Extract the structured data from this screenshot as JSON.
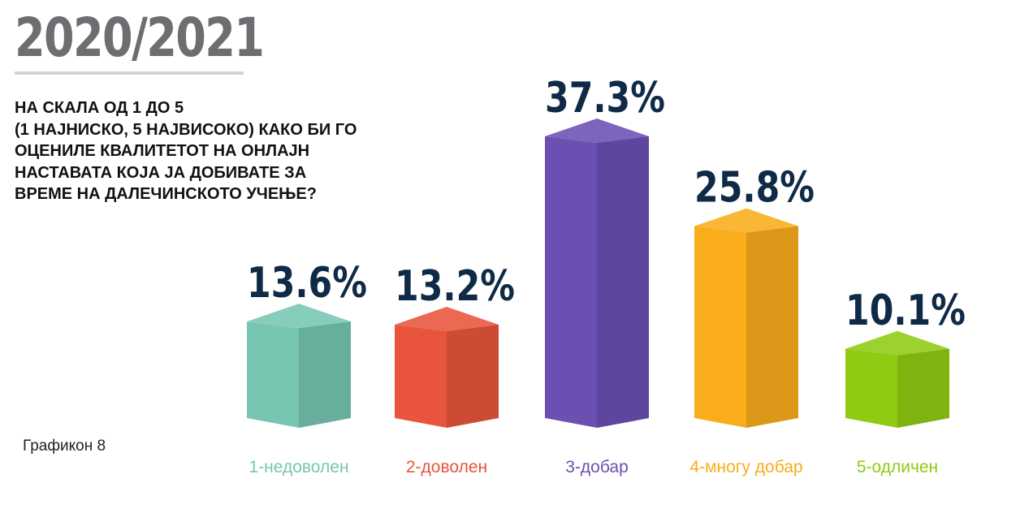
{
  "header": {
    "year": "2020/2021",
    "question": "НА СКАЛА ОД 1 ДО 5\n(1 НАЈНИСКО, 5 НАЈВИСОКО) КАКО БИ ГО\nОЦЕНИЛЕ КВАЛИТЕТОТ НА ОНЛАЈН\nНАСТАВАТА КОЈА ЈА ДОБИВАТЕ ЗА\nВРЕМЕ НА ДАЛЕЧИНСКОТО УЧЕЊЕ?"
  },
  "caption": "Графикон 8",
  "chart_data": {
    "type": "bar",
    "title": "НА СКАЛА ОД 1 ДО 5 (1 НАЈНИСКО, 5 НАЈВИСОКО) КАКО БИ ГО ОЦЕНИЛЕ КВАЛИТЕТОТ НА ОНЛАЈН НАСТАВАТА КОЈА ЈА ДОБИВАТЕ ЗА ВРЕМЕ НА ДАЛЕЧИНСКОТО УЧЕЊЕ?",
    "categories": [
      "1-недоволен",
      "2-доволен",
      "3-добар",
      "4-многу добар",
      "5-одличен"
    ],
    "values": [
      13.6,
      13.2,
      37.3,
      25.8,
      10.1
    ],
    "value_labels": [
      "13.6%",
      "13.2%",
      "37.3%",
      "25.8%",
      "10.1%"
    ],
    "colors": [
      "#76c6b2",
      "#e8553c",
      "#6b4fb3",
      "#f9ad1b",
      "#8fcb12"
    ],
    "xlabel": "",
    "ylabel": "",
    "ylim": [
      0,
      40
    ],
    "grid": false,
    "legend": "none"
  }
}
